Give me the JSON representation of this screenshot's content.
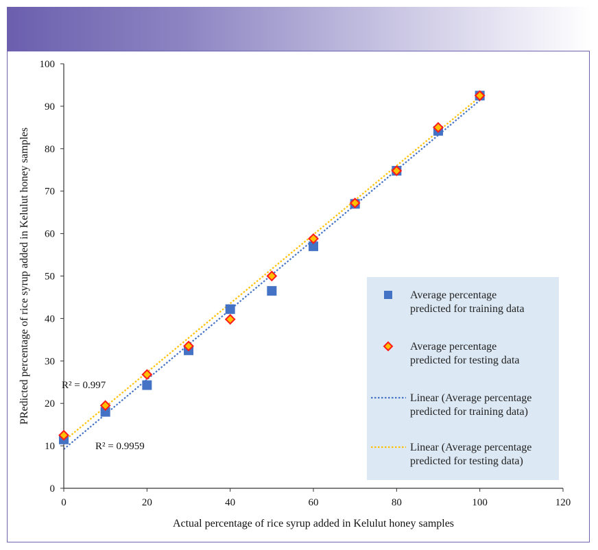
{
  "chart_data": {
    "type": "scatter",
    "title": "",
    "xlabel": "Actual percentage of rice syrup added in Kelulut honey samples",
    "ylabel": "PRedicted percentage of rice syrup added in Kelulut honey samples",
    "xlim": [
      0,
      120
    ],
    "ylim": [
      0,
      100
    ],
    "xticks": [
      0,
      20,
      40,
      60,
      80,
      100,
      120
    ],
    "yticks": [
      0,
      10,
      20,
      30,
      40,
      50,
      60,
      70,
      80,
      90,
      100
    ],
    "legend_position": "bottom-right",
    "series": [
      {
        "name": "Average percentage predicted for training data",
        "legend_lines": [
          "Average percentage",
          "predicted for training data"
        ],
        "marker": "square",
        "color": "#4472c4",
        "x": [
          0,
          10,
          20,
          30,
          40,
          50,
          60,
          70,
          80,
          90,
          100
        ],
        "y": [
          11.5,
          18,
          24.3,
          32.5,
          42.2,
          46.5,
          57,
          67,
          74.8,
          84.2,
          92.5
        ]
      },
      {
        "name": "Average percentage predicted for testing data",
        "legend_lines": [
          "Average percentage",
          "predicted for testing data"
        ],
        "marker": "diamond",
        "color": "#ff1a1a",
        "fill": "#ffc000",
        "x": [
          0,
          10,
          20,
          30,
          40,
          50,
          60,
          70,
          80,
          90,
          100
        ],
        "y": [
          12.5,
          19.5,
          26.8,
          33.5,
          39.8,
          50,
          58.8,
          67.2,
          74.8,
          85,
          92.5
        ]
      }
    ],
    "trendlines": [
      {
        "name": "Linear (Average percentage predicted for training data)",
        "legend_lines": [
          "Linear (Average percentage",
          "predicted for training data)"
        ],
        "color": "#4472c4",
        "x": [
          0,
          100
        ],
        "y": [
          9.2,
          91.4
        ],
        "r2_label": "R² = 0.9959"
      },
      {
        "name": "Linear (Average percentage predicted for testing data)",
        "legend_lines": [
          "Linear (Average percentage",
          "predicted for testing data)"
        ],
        "color": "#ffc000",
        "x": [
          0,
          100
        ],
        "y": [
          11.1,
          92.2
        ],
        "r2_label": "R² = 0.997"
      }
    ]
  }
}
